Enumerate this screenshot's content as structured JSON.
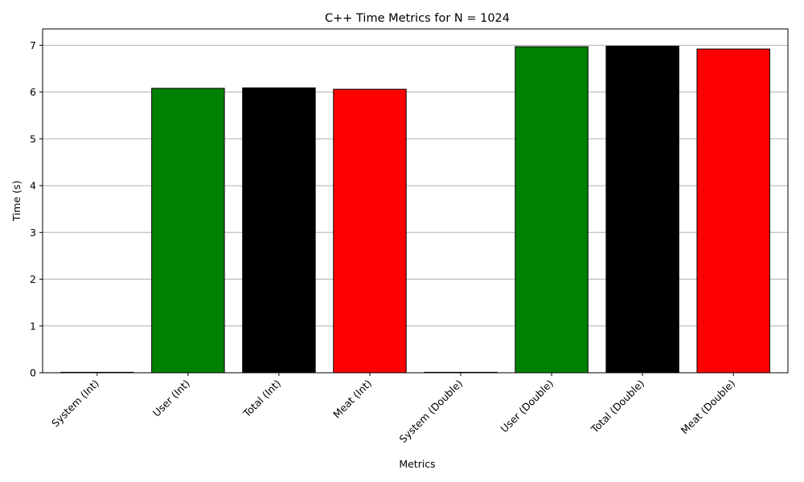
{
  "chart_data": {
    "type": "bar",
    "title": "C++ Time Metrics for N = 1024",
    "xlabel": "Metrics",
    "ylabel": "Time (s)",
    "categories": [
      "System (Int)",
      "User (Int)",
      "Total (Int)",
      "Meat (Int)",
      "System (Double)",
      "User (Double)",
      "Total (Double)",
      "Meat (Double)"
    ],
    "values": [
      0.01,
      6.08,
      6.09,
      6.06,
      0.01,
      6.97,
      6.98,
      6.92
    ],
    "colors": [
      "#008000",
      "#008000",
      "#000000",
      "#ff0000",
      "#008000",
      "#008000",
      "#000000",
      "#ff0000"
    ],
    "ylim": [
      0,
      7.35
    ],
    "yticks": [
      0,
      1,
      2,
      3,
      4,
      5,
      6,
      7
    ],
    "grid": "y",
    "legend": "none"
  }
}
